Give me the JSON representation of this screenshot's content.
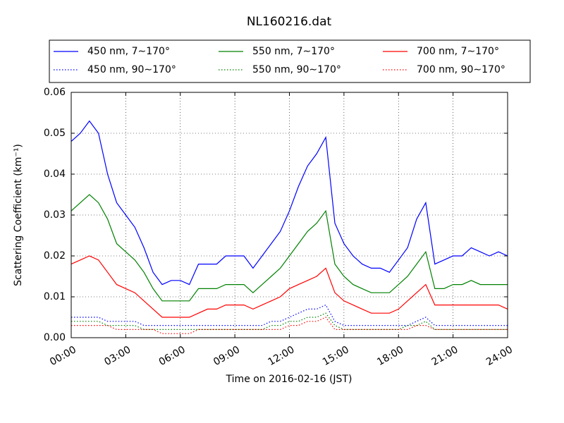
{
  "chart_data": {
    "type": "line",
    "title": "NL160216.dat",
    "x_label": "Time on 2016-02-16 (JST)",
    "y_label": "Scattering Coefficient (km⁻¹)",
    "x": [
      0,
      0.5,
      1,
      1.5,
      2,
      2.5,
      3,
      3.5,
      4,
      4.5,
      5,
      5.5,
      6,
      6.5,
      7,
      7.5,
      8,
      8.5,
      9,
      9.5,
      10,
      10.5,
      11,
      11.5,
      12,
      12.5,
      13,
      13.5,
      14,
      14.5,
      15,
      15.5,
      16,
      16.5,
      17,
      17.5,
      18,
      18.5,
      19,
      19.5,
      20,
      20.5,
      21,
      21.5,
      22,
      22.5,
      23,
      23.5,
      24
    ],
    "xlim": [
      0,
      24
    ],
    "xticks": [
      {
        "value": 0,
        "label": "00:00"
      },
      {
        "value": 3,
        "label": "03:00"
      },
      {
        "value": 6,
        "label": "06:00"
      },
      {
        "value": 9,
        "label": "09:00"
      },
      {
        "value": 12,
        "label": "12:00"
      },
      {
        "value": 15,
        "label": "15:00"
      },
      {
        "value": 18,
        "label": "18:00"
      },
      {
        "value": 21,
        "label": "21:00"
      },
      {
        "value": 24,
        "label": "24:00"
      }
    ],
    "ylim": [
      0,
      0.06
    ],
    "yticks": [
      {
        "value": 0,
        "label": "0.00"
      },
      0.01,
      0.02,
      0.03,
      0.04,
      0.05,
      0.06
    ],
    "grid": true,
    "series": [
      {
        "name": "450 nm, 7∼170°",
        "color": "#0000ff",
        "linestyle": "solid",
        "values": [
          0.048,
          0.05,
          0.053,
          0.05,
          0.04,
          0.033,
          0.03,
          0.027,
          0.022,
          0.016,
          0.013,
          0.014,
          0.014,
          0.013,
          0.018,
          0.018,
          0.018,
          0.02,
          0.02,
          0.02,
          0.017,
          0.02,
          0.023,
          0.026,
          0.031,
          0.037,
          0.042,
          0.045,
          0.049,
          0.028,
          0.023,
          0.02,
          0.018,
          0.017,
          0.017,
          0.016,
          0.019,
          0.022,
          0.029,
          0.033,
          0.018,
          0.019,
          0.02,
          0.02,
          0.022,
          0.021,
          0.02,
          0.021,
          0.02
        ]
      },
      {
        "name": "550 nm, 7∼170°",
        "color": "#008000",
        "linestyle": "solid",
        "values": [
          0.031,
          0.033,
          0.035,
          0.033,
          0.029,
          0.023,
          0.021,
          0.019,
          0.016,
          0.012,
          0.009,
          0.009,
          0.009,
          0.009,
          0.012,
          0.012,
          0.012,
          0.013,
          0.013,
          0.013,
          0.011,
          0.013,
          0.015,
          0.017,
          0.02,
          0.023,
          0.026,
          0.028,
          0.031,
          0.018,
          0.015,
          0.013,
          0.012,
          0.011,
          0.011,
          0.011,
          0.013,
          0.015,
          0.018,
          0.021,
          0.012,
          0.012,
          0.013,
          0.013,
          0.014,
          0.013,
          0.013,
          0.013,
          0.013
        ]
      },
      {
        "name": "700 nm, 7∼170°",
        "color": "#ff0000",
        "linestyle": "solid",
        "values": [
          0.018,
          0.019,
          0.02,
          0.019,
          0.016,
          0.013,
          0.012,
          0.011,
          0.009,
          0.007,
          0.005,
          0.005,
          0.005,
          0.005,
          0.006,
          0.007,
          0.007,
          0.008,
          0.008,
          0.008,
          0.007,
          0.008,
          0.009,
          0.01,
          0.012,
          0.013,
          0.014,
          0.015,
          0.017,
          0.011,
          0.009,
          0.008,
          0.007,
          0.006,
          0.006,
          0.006,
          0.007,
          0.009,
          0.011,
          0.013,
          0.008,
          0.008,
          0.008,
          0.008,
          0.008,
          0.008,
          0.008,
          0.008,
          0.007
        ]
      },
      {
        "name": "450 nm, 90∼170°",
        "color": "#0000ff",
        "linestyle": "dotted",
        "values": [
          0.005,
          0.005,
          0.005,
          0.005,
          0.004,
          0.004,
          0.004,
          0.004,
          0.003,
          0.003,
          0.003,
          0.003,
          0.003,
          0.003,
          0.003,
          0.003,
          0.003,
          0.003,
          0.003,
          0.003,
          0.003,
          0.003,
          0.004,
          0.004,
          0.005,
          0.006,
          0.007,
          0.007,
          0.008,
          0.004,
          0.003,
          0.003,
          0.003,
          0.003,
          0.003,
          0.003,
          0.003,
          0.003,
          0.004,
          0.005,
          0.003,
          0.003,
          0.003,
          0.003,
          0.003,
          0.003,
          0.003,
          0.003,
          0.003
        ]
      },
      {
        "name": "550 nm, 90∼170°",
        "color": "#008000",
        "linestyle": "dotted",
        "values": [
          0.004,
          0.004,
          0.004,
          0.004,
          0.003,
          0.003,
          0.003,
          0.003,
          0.002,
          0.002,
          0.002,
          0.002,
          0.002,
          0.002,
          0.002,
          0.002,
          0.002,
          0.002,
          0.002,
          0.002,
          0.002,
          0.002,
          0.003,
          0.003,
          0.004,
          0.004,
          0.005,
          0.005,
          0.006,
          0.003,
          0.002,
          0.002,
          0.002,
          0.002,
          0.002,
          0.002,
          0.002,
          0.003,
          0.003,
          0.004,
          0.002,
          0.002,
          0.002,
          0.002,
          0.002,
          0.002,
          0.002,
          0.002,
          0.002
        ]
      },
      {
        "name": "700 nm, 90∼170°",
        "color": "#ff0000",
        "linestyle": "dotted",
        "values": [
          0.003,
          0.003,
          0.003,
          0.003,
          0.003,
          0.002,
          0.002,
          0.002,
          0.002,
          0.002,
          0.001,
          0.001,
          0.001,
          0.001,
          0.002,
          0.002,
          0.002,
          0.002,
          0.002,
          0.002,
          0.002,
          0.002,
          0.002,
          0.002,
          0.003,
          0.003,
          0.004,
          0.004,
          0.005,
          0.002,
          0.002,
          0.002,
          0.002,
          0.002,
          0.002,
          0.002,
          0.002,
          0.002,
          0.003,
          0.003,
          0.002,
          0.002,
          0.002,
          0.002,
          0.002,
          0.002,
          0.002,
          0.002,
          0.002
        ]
      }
    ]
  }
}
